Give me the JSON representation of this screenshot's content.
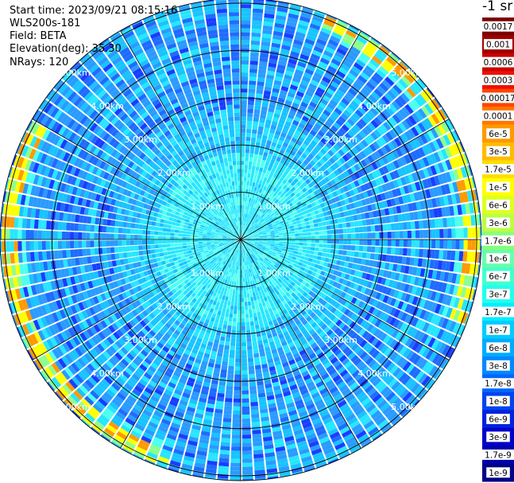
{
  "info": {
    "start_time": "Start time: 2023/09/21 08:15:16",
    "instrument": "WLS200s-181",
    "field": "Field: BETA",
    "elevation": "Elevation(deg): 35.30",
    "nrays": "NRays: 120"
  },
  "colorbar": {
    "unit": "-1 sr",
    "labels": [
      "0.0017",
      "0.001",
      "0.0006",
      "0.0003",
      "0.00017",
      "0.0001",
      "6e-5",
      "3e-5",
      "1.7e-5",
      "1e-5",
      "6e-6",
      "3e-6",
      "1.7e-6",
      "1e-6",
      "6e-7",
      "3e-7",
      "1.7e-7",
      "1e-7",
      "6e-8",
      "3e-8",
      "1.7e-8",
      "1e-8",
      "6e-9",
      "3e-9",
      "1.7e-9",
      "1e-9"
    ],
    "colors": [
      "#7a0000",
      "#a00000",
      "#cc0000",
      "#ee1100",
      "#ff4400",
      "#ff7700",
      "#ff9900",
      "#ffbb00",
      "#ffdd00",
      "#ffff00",
      "#ddff22",
      "#bbff44",
      "#88ff77",
      "#66ffaa",
      "#44ffcc",
      "#22ffee",
      "#00eeff",
      "#00ccff",
      "#00aaff",
      "#0088ff",
      "#0066ff",
      "#0044ee",
      "#0022dd",
      "#0000cc",
      "#0000aa",
      "#000088"
    ]
  },
  "chart_data": {
    "type": "heatmap",
    "subtype": "polar-ppi",
    "nrays": 120,
    "range_rings_km": [
      1,
      2,
      3,
      4,
      5
    ],
    "range_ring_labels": [
      "1.00km",
      "2.00km",
      "3.00km",
      "4.00km",
      "5.00km"
    ],
    "spokes_deg": [
      0,
      30,
      60,
      90,
      120,
      150,
      180,
      210,
      240,
      270,
      300,
      330
    ],
    "max_range_km": 5.1,
    "value_profile_by_range_km": [
      {
        "range_km": 0.5,
        "beta": "1.7e-7"
      },
      {
        "range_km": 1.5,
        "beta": "1e-7"
      },
      {
        "range_km": 2.5,
        "beta": "3e-8"
      },
      {
        "range_km": 3.5,
        "beta": "1.7e-8"
      },
      {
        "range_km": 4.5,
        "beta": "1.7e-8"
      },
      {
        "range_km": 4.85,
        "beta": "1.7e-5"
      }
    ]
  }
}
